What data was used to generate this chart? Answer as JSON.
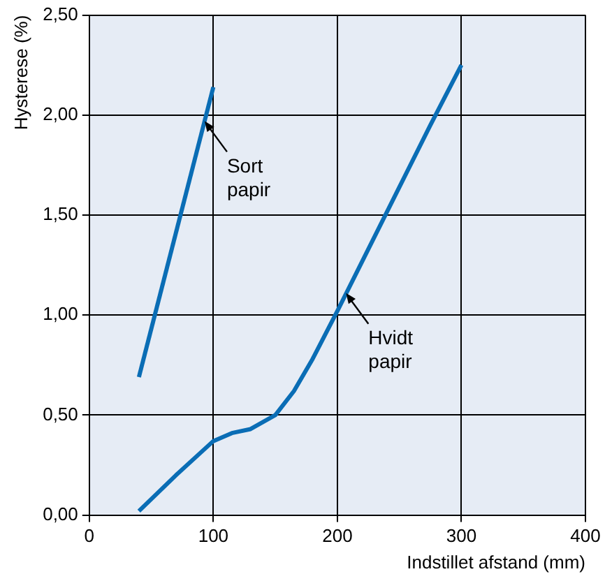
{
  "chart_data": {
    "type": "line",
    "xlabel": "Indstillet afstand (mm)",
    "ylabel": "Hysterese (%)",
    "xlim": [
      0,
      400
    ],
    "xticks": [
      0,
      100,
      200,
      300,
      400
    ],
    "ylim": [
      0,
      2.5
    ],
    "yticks": [
      {
        "value": 0,
        "label": "0,00"
      },
      {
        "value": 0.5,
        "label": "0,50"
      },
      {
        "value": 1,
        "label": "1,00"
      },
      {
        "value": 1.5,
        "label": "1,50"
      },
      {
        "value": 2,
        "label": "2,00"
      },
      {
        "value": 2.5,
        "label": "2,50"
      }
    ],
    "grid": true,
    "legend": false,
    "marker": "none",
    "line_style": "solid",
    "series": [
      {
        "color": "#0a6db5",
        "x": [
          40,
          100
        ],
        "values": [
          0.69,
          2.14
        ]
      },
      {
        "color": "#0a6db5",
        "x": [
          40,
          70,
          100,
          115,
          130,
          150,
          165,
          180,
          200,
          225,
          250,
          275,
          300
        ],
        "values": [
          0.02,
          0.2,
          0.37,
          0.41,
          0.43,
          0.5,
          0.62,
          0.78,
          1.02,
          1.33,
          1.64,
          1.95,
          2.25
        ]
      }
    ],
    "annotations": [
      {
        "text": "Sort papir",
        "x": 93,
        "y": 1.97
      },
      {
        "text": "Hvidt papir",
        "x": 207,
        "y": 1.11
      }
    ]
  }
}
